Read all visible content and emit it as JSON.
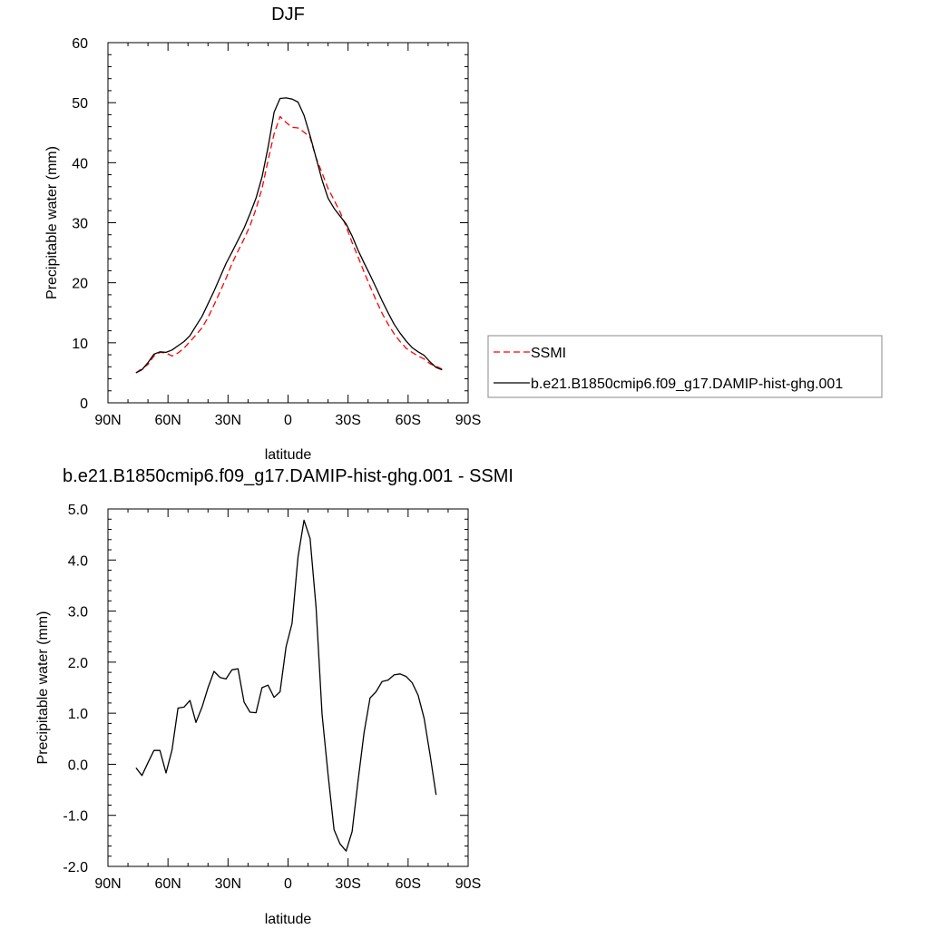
{
  "chart_data": [
    {
      "type": "line",
      "title": "DJF",
      "xlabel": "latitude",
      "ylabel": "Precipitable water (mm)",
      "xlim": [
        -90,
        90
      ],
      "ylim": [
        0,
        60
      ],
      "xticks": [
        -90,
        -60,
        -30,
        0,
        30,
        60,
        90
      ],
      "xticklabels": [
        "90N",
        "60N",
        "30N",
        "0",
        "30S",
        "60S",
        "90S"
      ],
      "yticks": [
        0,
        10,
        20,
        30,
        40,
        50,
        60
      ],
      "yticklabels": [
        "0",
        "10",
        "20",
        "30",
        "40",
        "50",
        "60"
      ],
      "legend": "outside-right",
      "grid": false,
      "series": [
        {
          "name": "SSMI",
          "color": "#ff0000",
          "dash": "dashed",
          "x": [
            -76,
            -73,
            -70,
            -67,
            -64,
            -61,
            -58,
            -55,
            -52,
            -49,
            -46,
            -43,
            -40,
            -37,
            -34,
            -31,
            -28,
            -25,
            -22,
            -19,
            -16,
            -13,
            -10,
            -7,
            -4,
            -1,
            2,
            5,
            8,
            11,
            14,
            17,
            20,
            23,
            26,
            29,
            32,
            35,
            38,
            41,
            44,
            47,
            50,
            53,
            56,
            59,
            62,
            65,
            68,
            71,
            74,
            77
          ],
          "y": [
            5.0,
            5.7,
            6.4,
            7.8,
            8.4,
            8.3,
            7.8,
            8.3,
            9.1,
            10.2,
            11.3,
            12.5,
            14.2,
            16.3,
            18.5,
            20.7,
            23.2,
            25.3,
            27.3,
            29.5,
            32.3,
            35.7,
            40.3,
            44.8,
            47.7,
            46.7,
            45.9,
            45.8,
            45.1,
            44.2,
            40.8,
            38.3,
            35.7,
            33.8,
            31.8,
            29.4,
            26.7,
            24.3,
            21.8,
            19.4,
            17.1,
            14.9,
            13.1,
            11.5,
            10.2,
            9.1,
            8.4,
            7.8,
            7.3,
            6.5,
            6.1,
            5.6
          ]
        },
        {
          "name": "b.e21.B1850cmip6.f09_g17.DAMIP-hist-ghg.001",
          "color": "#000000",
          "dash": "solid",
          "x": [
            -76,
            -73,
            -70,
            -67,
            -64,
            -61,
            -58,
            -55,
            -52,
            -49,
            -46,
            -43,
            -40,
            -37,
            -34,
            -31,
            -28,
            -25,
            -22,
            -19,
            -16,
            -13,
            -10,
            -7,
            -4,
            -1,
            2,
            5,
            8,
            11,
            14,
            17,
            20,
            23,
            26,
            29,
            32,
            35,
            38,
            41,
            44,
            47,
            50,
            53,
            56,
            59,
            62,
            65,
            68,
            71,
            74,
            77
          ],
          "y": [
            5.0,
            5.5,
            6.7,
            8.1,
            8.5,
            8.4,
            8.8,
            9.5,
            10.2,
            11.2,
            12.8,
            14.4,
            16.5,
            18.6,
            20.9,
            23.2,
            25.1,
            27.1,
            29.1,
            31.5,
            34.1,
            37.6,
            42.5,
            48.4,
            50.7,
            50.8,
            50.6,
            50.1,
            47.9,
            44.5,
            40.8,
            37.1,
            34.1,
            32.4,
            31.1,
            29.8,
            27.8,
            25.4,
            23.3,
            21.3,
            19.2,
            17.0,
            15.0,
            13.1,
            11.6,
            10.3,
            9.2,
            8.5,
            7.9,
            6.8,
            5.9,
            5.5
          ]
        }
      ]
    },
    {
      "type": "line",
      "title": "b.e21.B1850cmip6.f09_g17.DAMIP-hist-ghg.001 - SSMI",
      "xlabel": "latitude",
      "ylabel": "Precipitable water (mm)",
      "xlim": [
        -90,
        90
      ],
      "ylim": [
        -2.0,
        5.0
      ],
      "xticks": [
        -90,
        -60,
        -30,
        0,
        30,
        60,
        90
      ],
      "xticklabels": [
        "90N",
        "60N",
        "30N",
        "0",
        "30S",
        "60S",
        "90S"
      ],
      "yticks": [
        -2.0,
        -1.0,
        0.0,
        1.0,
        2.0,
        3.0,
        4.0,
        5.0
      ],
      "yticklabels": [
        "-2.0",
        "-1.0",
        "0.0",
        "1.0",
        "2.0",
        "3.0",
        "4.0",
        "5.0"
      ],
      "grid": false,
      "series": [
        {
          "color": "#000000",
          "dash": "solid",
          "x": [
            -76,
            -73,
            -70,
            -67,
            -64,
            -61,
            -58,
            -55,
            -52,
            -49,
            -46,
            -43,
            -40,
            -37,
            -34,
            -31,
            -28,
            -25,
            -22,
            -19,
            -16,
            -13,
            -10,
            -7,
            -4,
            -1,
            2,
            5,
            8,
            11,
            14,
            17,
            20,
            23,
            26,
            29,
            32,
            35,
            38,
            41,
            44,
            47,
            50,
            53,
            56,
            59,
            62,
            65,
            68,
            71,
            74
          ],
          "y": [
            -0.07,
            -0.22,
            0.03,
            0.27,
            0.27,
            -0.17,
            0.28,
            1.1,
            1.12,
            1.25,
            0.82,
            1.12,
            1.5,
            1.82,
            1.7,
            1.67,
            1.85,
            1.87,
            1.22,
            1.02,
            1.01,
            1.5,
            1.55,
            1.31,
            1.42,
            2.3,
            2.76,
            4.06,
            4.78,
            4.42,
            3.07,
            0.98,
            -0.2,
            -1.28,
            -1.56,
            -1.7,
            -1.32,
            -0.32,
            0.62,
            1.3,
            1.42,
            1.62,
            1.65,
            1.75,
            1.77,
            1.72,
            1.6,
            1.35,
            0.9,
            0.18,
            -0.6
          ]
        }
      ]
    }
  ]
}
